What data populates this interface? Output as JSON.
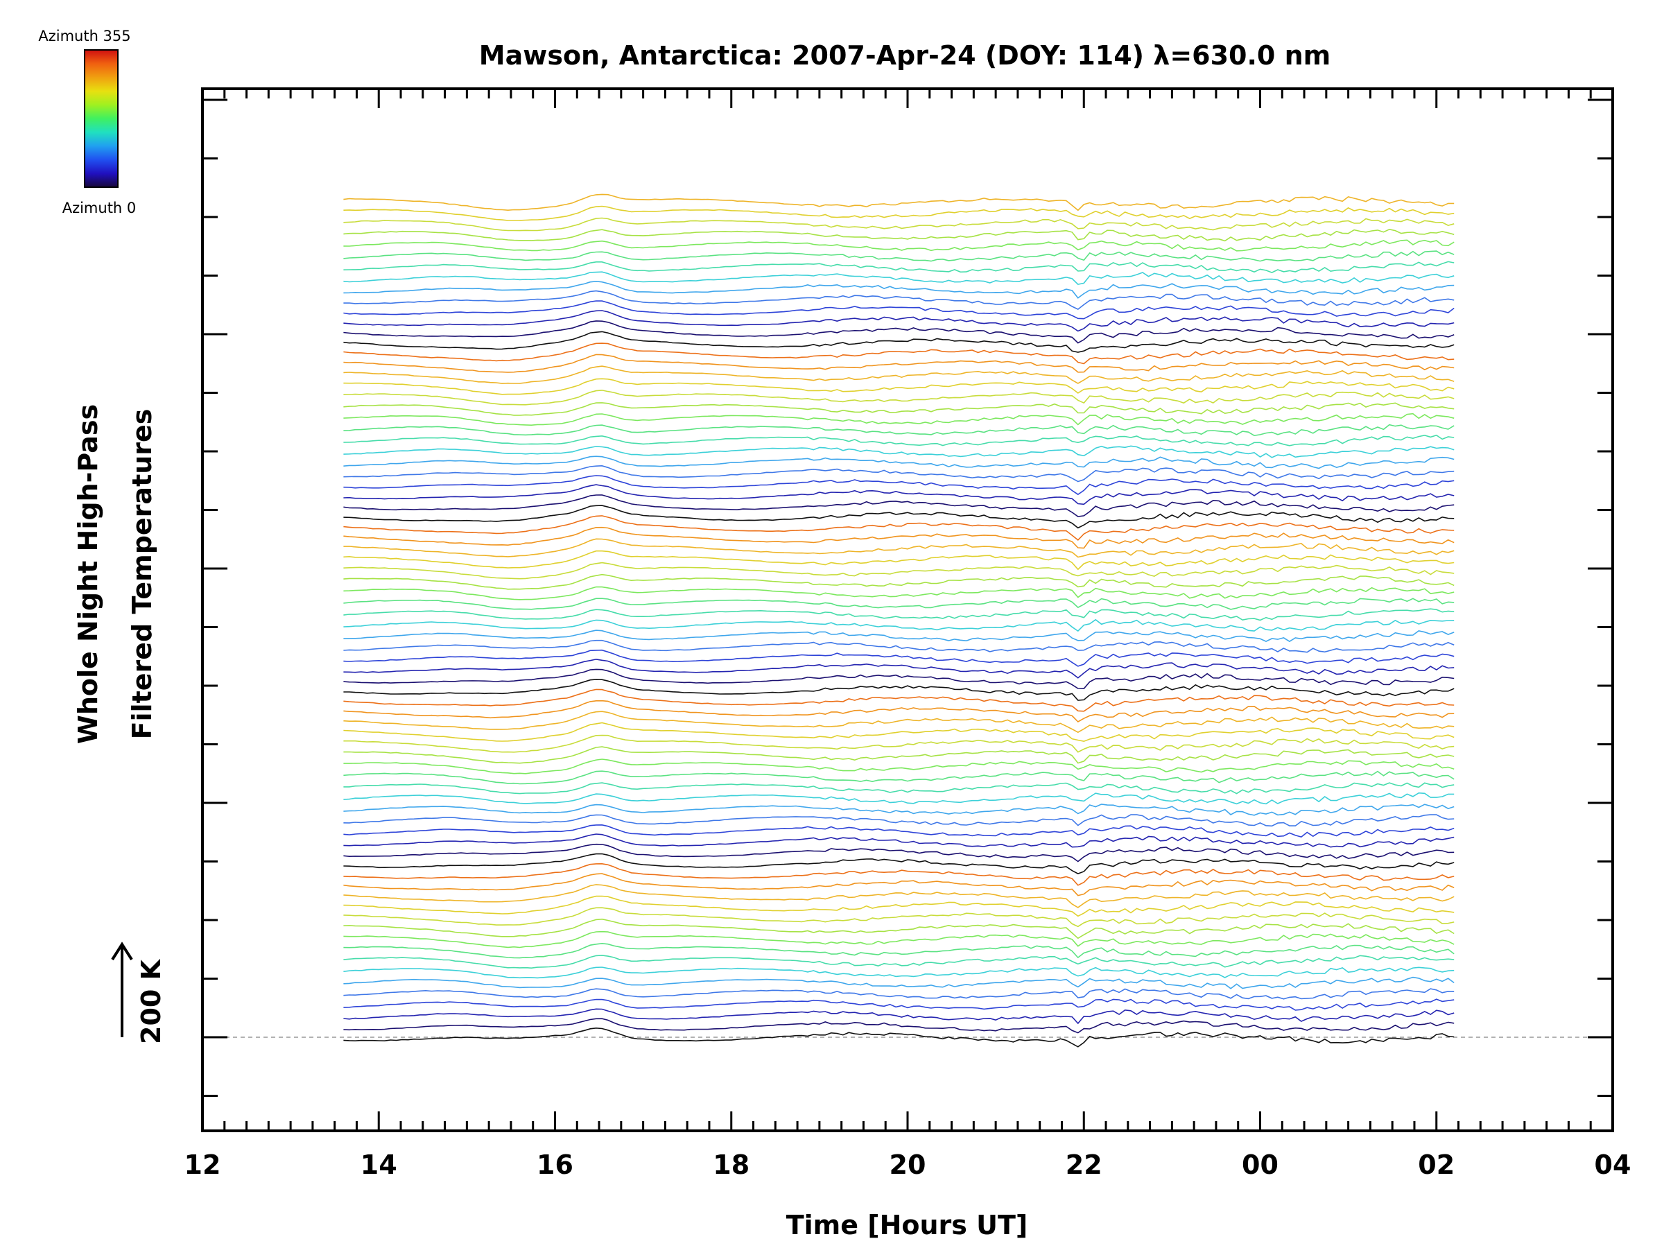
{
  "chart_data": {
    "type": "line",
    "title": "Mawson, Antarctica: 2007-Apr-24 (DOY: 114) λ=630.0 nm",
    "xlabel": "Time [Hours UT]",
    "ylabel_lines": [
      "Whole Night High-Pass",
      "Filtered Temperatures"
    ],
    "scale_bar_label": "200 K",
    "colorbar": {
      "top_label": "Azimuth 355",
      "bottom_label": "Azimuth 0",
      "colors": [
        "#d01010",
        "#f06010",
        "#f0a010",
        "#e8e010",
        "#a0f020",
        "#40f060",
        "#20e0c0",
        "#20a0f0",
        "#2050f0",
        "#2010c0",
        "#18083a"
      ]
    },
    "x_tick_labels": [
      "12",
      "14",
      "16",
      "18",
      "20",
      "22",
      "00",
      "02",
      "04"
    ],
    "xlim_hours_ut": [
      12,
      28
    ],
    "data_x_range_hours_ut": [
      13.6,
      26.2
    ],
    "n_series": 78,
    "series_color_cycle": [
      "#111111",
      "#1b1070",
      "#2424b0",
      "#2e44d8",
      "#3f78e8",
      "#3fa6ec",
      "#3cd0d8",
      "#46dcaa",
      "#5ae282",
      "#7ce85e",
      "#a6e244",
      "#c8dc3a",
      "#e0d02e",
      "#eeb428",
      "#f0941e",
      "#ec7018"
    ],
    "grid": false,
    "legend": "colorbar top-left"
  }
}
